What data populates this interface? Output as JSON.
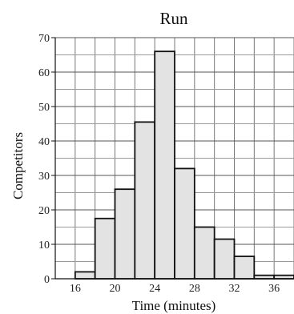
{
  "chart_data": {
    "type": "bar",
    "title": "Run",
    "xlabel": "Time (minutes)",
    "ylabel": "Competitors",
    "bin_edges": [
      16,
      18,
      20,
      22,
      24,
      26,
      28,
      30,
      32,
      34,
      36,
      38
    ],
    "values": [
      2,
      17.5,
      26,
      45.5,
      66,
      32,
      15,
      11.5,
      6.5,
      1,
      1
    ],
    "xlim": [
      14,
      38
    ],
    "ylim": [
      0,
      70
    ],
    "x_ticks": [
      16,
      20,
      24,
      28,
      32,
      36
    ],
    "y_ticks": [
      0,
      10,
      20,
      30,
      40,
      50,
      60,
      70
    ],
    "grid": true,
    "colors": {
      "bar_fill": "#e3e3e3",
      "bar_stroke": "#111111",
      "grid": "#777777"
    }
  }
}
